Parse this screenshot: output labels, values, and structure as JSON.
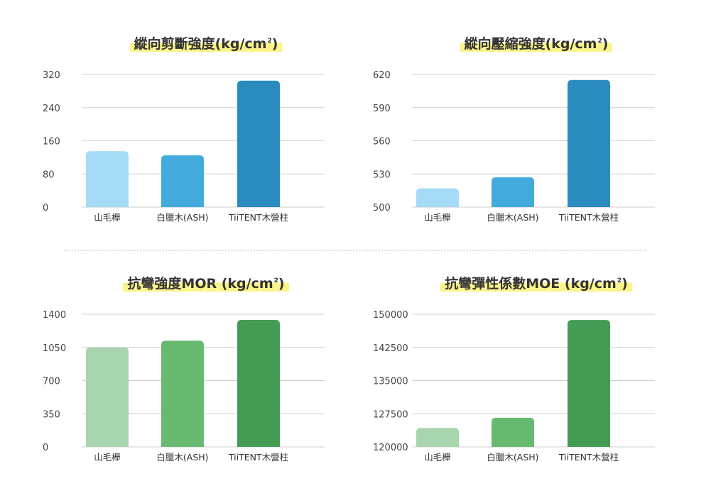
{
  "chart_data": [
    {
      "type": "bar",
      "title": "縱向剪斷強度(kg/cm",
      "title_sup": "2",
      "title_close": ")",
      "categories": [
        "山毛櫸",
        "白臘木(ASH)",
        "TiiTENT木營柱"
      ],
      "values": [
        135,
        125,
        305
      ],
      "yticks": [
        "0",
        "80",
        "160",
        "240",
        "320"
      ],
      "ylim": [
        0,
        320
      ],
      "colors": [
        "#a5dbf6",
        "#42abdb",
        "#2a8bbf"
      ],
      "grid": true
    },
    {
      "type": "bar",
      "title": "縱向壓縮強度(kg/cm",
      "title_sup": "2",
      "title_close": ")",
      "categories": [
        "山毛櫸",
        "白臘木(ASH)",
        "TiiTENT木營柱"
      ],
      "values": [
        517,
        527,
        615
      ],
      "yticks": [
        "500",
        "530",
        "560",
        "590",
        "620"
      ],
      "ylim": [
        500,
        620
      ],
      "colors": [
        "#a5dbf6",
        "#42abdb",
        "#2a8bbf"
      ],
      "grid": true
    },
    {
      "type": "bar",
      "title": "抗彎強度MOR (kg/cm",
      "title_sup": "2",
      "title_close": ")",
      "categories": [
        "山毛櫸",
        "白臘木(ASH)",
        "TiiTENT木營柱"
      ],
      "values": [
        1050,
        1120,
        1340
      ],
      "yticks": [
        "0",
        "350",
        "700",
        "1050",
        "1400"
      ],
      "ylim": [
        0,
        1400
      ],
      "colors": [
        "#a8d5ae",
        "#67ba6f",
        "#449c54"
      ],
      "grid": true
    },
    {
      "type": "bar",
      "title": "抗彎彈性係數MOE (kg/cm",
      "title_sup": "2",
      "title_close": ")",
      "categories": [
        "山毛櫸",
        "白臘木(ASH)",
        "TiiTENT木營柱"
      ],
      "values": [
        124300,
        126600,
        148700
      ],
      "yticks": [
        "120000",
        "127500",
        "135000",
        "142500",
        "150000"
      ],
      "ylim": [
        120000,
        150000
      ],
      "colors": [
        "#a8d5ae",
        "#67ba6f",
        "#449c54"
      ],
      "grid": true
    }
  ]
}
